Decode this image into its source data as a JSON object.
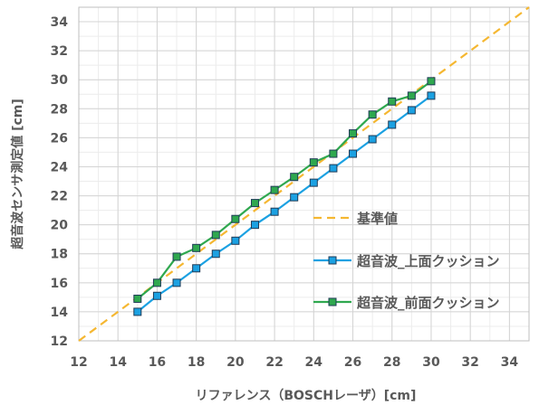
{
  "chart_data": {
    "type": "line",
    "title": "",
    "xlabel": "リファレンス（BOSCHレーザ）[cm]",
    "ylabel": "超音波センサ測定値 [cm]",
    "xlim": [
      12,
      35
    ],
    "ylim": [
      12,
      35
    ],
    "xticks": [
      12,
      14,
      16,
      18,
      20,
      22,
      24,
      26,
      28,
      30,
      32,
      34
    ],
    "yticks": [
      12,
      14,
      16,
      18,
      20,
      22,
      24,
      26,
      28,
      30,
      32,
      34
    ],
    "grid": true,
    "legend_position": "right",
    "series": [
      {
        "name": "基準値",
        "style": "dashed",
        "color": "#f5b731",
        "x": [
          12,
          35
        ],
        "y": [
          12,
          35
        ]
      },
      {
        "name": "超音波_上面クッション",
        "style": "line-square",
        "color": "#1ba1e2",
        "x": [
          15,
          16,
          17,
          18,
          19,
          20,
          21,
          22,
          23,
          24,
          25,
          26,
          27,
          28,
          29,
          30
        ],
        "y": [
          14.0,
          15.1,
          16.0,
          17.0,
          18.0,
          18.9,
          20.0,
          20.9,
          21.9,
          22.9,
          23.9,
          24.9,
          25.9,
          26.9,
          27.9,
          28.9
        ]
      },
      {
        "name": "超音波_前面クッション",
        "style": "line-square",
        "color": "#2fa84f",
        "x": [
          15,
          16,
          17,
          18,
          19,
          20,
          21,
          22,
          23,
          24,
          25,
          26,
          27,
          28,
          29,
          30
        ],
        "y": [
          14.9,
          16.0,
          17.8,
          18.4,
          19.3,
          20.4,
          21.5,
          22.4,
          23.3,
          24.3,
          24.9,
          26.3,
          27.6,
          28.5,
          28.9,
          29.9
        ]
      }
    ]
  }
}
